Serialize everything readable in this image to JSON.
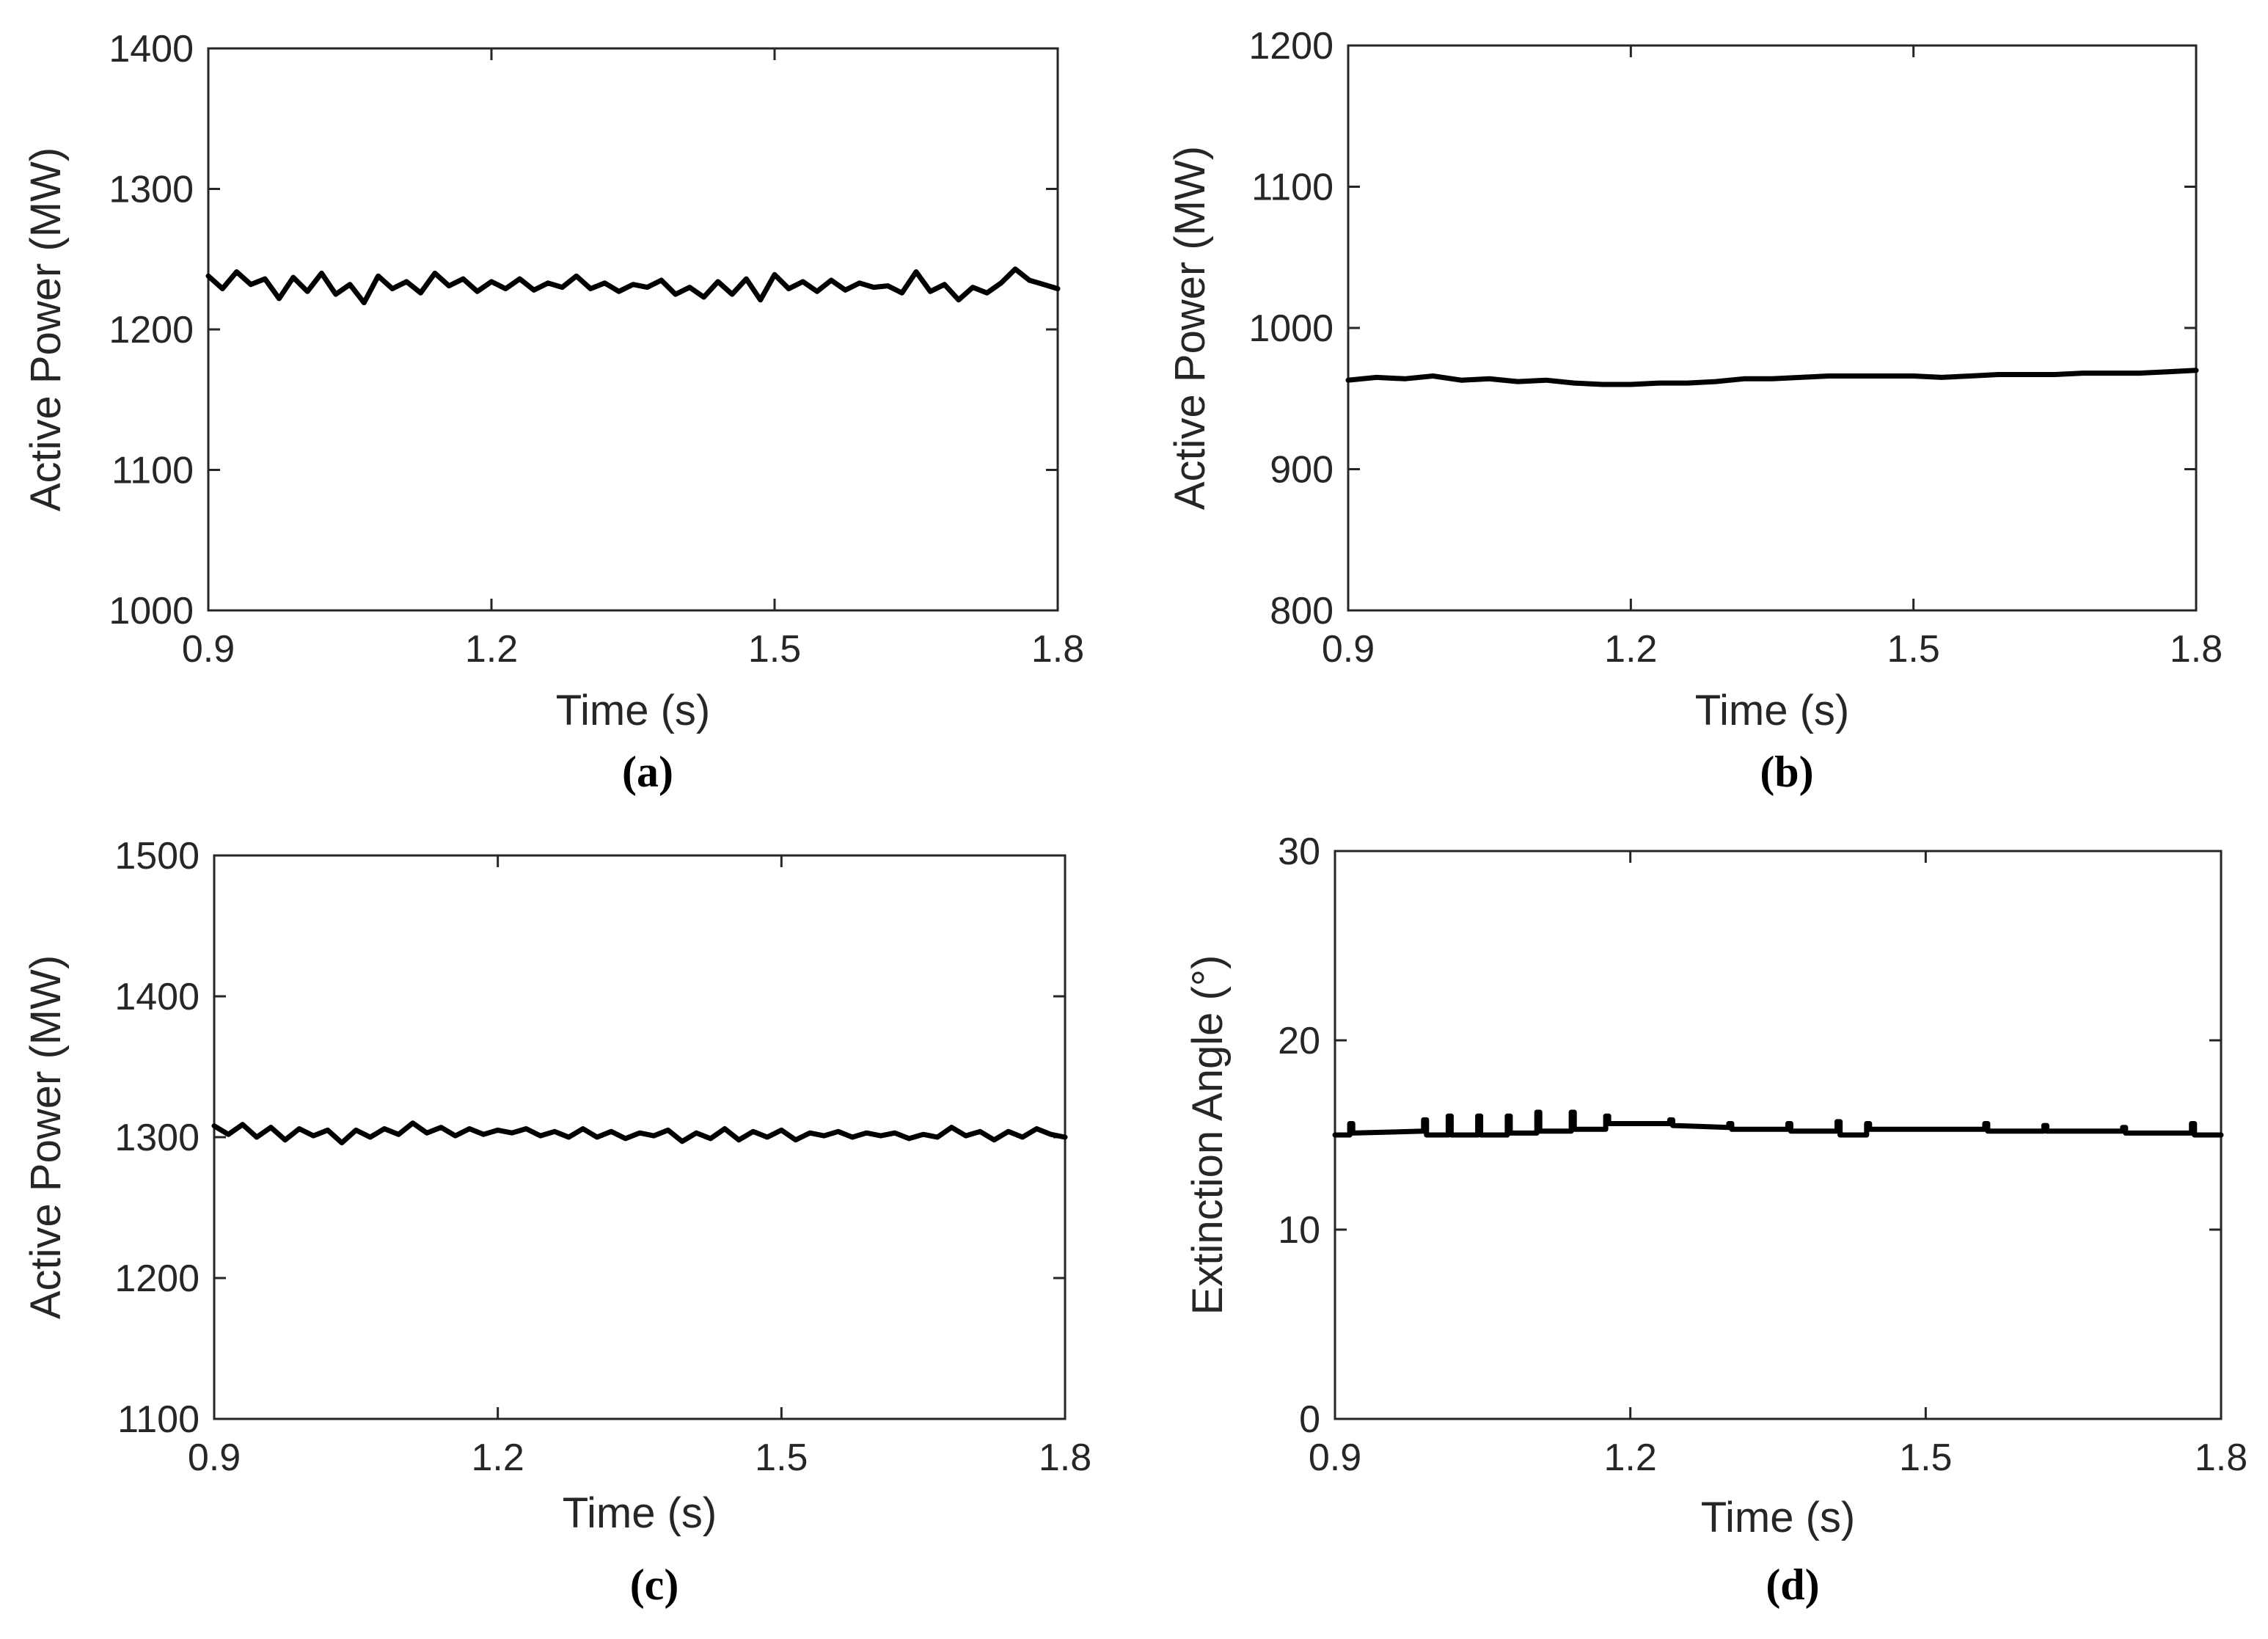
{
  "chart_data": [
    {
      "id": "a",
      "type": "line",
      "panel_label": "(a)",
      "xlabel": "Time (s)",
      "ylabel": "Active Power (MW)",
      "xlim": [
        0.9,
        1.8
      ],
      "ylim": [
        1000,
        1400
      ],
      "xticks": [
        0.9,
        1.2,
        1.5,
        1.8
      ],
      "xtick_labels": [
        "0.9",
        "1.2",
        "1.5",
        "1.8"
      ],
      "yticks": [
        1000,
        1100,
        1200,
        1300,
        1400
      ],
      "ytick_labels": [
        "1000",
        "1100",
        "1200",
        "1300",
        "1400"
      ],
      "grid": false,
      "series": [
        {
          "name": "Active Power",
          "color": "#000000",
          "x": [
            0.9,
            0.915,
            0.93,
            0.945,
            0.96,
            0.975,
            0.99,
            1.005,
            1.02,
            1.035,
            1.05,
            1.065,
            1.08,
            1.095,
            1.11,
            1.125,
            1.14,
            1.155,
            1.17,
            1.185,
            1.2,
            1.215,
            1.23,
            1.245,
            1.26,
            1.275,
            1.29,
            1.305,
            1.32,
            1.335,
            1.35,
            1.365,
            1.38,
            1.395,
            1.41,
            1.425,
            1.44,
            1.455,
            1.47,
            1.485,
            1.5,
            1.515,
            1.53,
            1.545,
            1.56,
            1.575,
            1.59,
            1.605,
            1.62,
            1.635,
            1.65,
            1.665,
            1.68,
            1.695,
            1.71,
            1.725,
            1.74,
            1.755,
            1.77,
            1.785,
            1.8
          ],
          "values": [
            1238,
            1229,
            1241,
            1232,
            1236,
            1222,
            1237,
            1227,
            1240,
            1225,
            1232,
            1219,
            1238,
            1229,
            1234,
            1226,
            1240,
            1231,
            1236,
            1227,
            1234,
            1229,
            1236,
            1228,
            1233,
            1230,
            1238,
            1229,
            1233,
            1227,
            1232,
            1230,
            1235,
            1225,
            1230,
            1223,
            1234,
            1225,
            1236,
            1221,
            1239,
            1229,
            1234,
            1227,
            1235,
            1228,
            1233,
            1230,
            1231,
            1226,
            1241,
            1227,
            1232,
            1221,
            1230,
            1226,
            1233,
            1243,
            1235,
            1232,
            1229
          ]
        }
      ]
    },
    {
      "id": "b",
      "type": "line",
      "panel_label": "(b)",
      "xlabel": "Time (s)",
      "ylabel": "Active Power (MW)",
      "xlim": [
        0.9,
        1.8
      ],
      "ylim": [
        800,
        1200
      ],
      "xticks": [
        0.9,
        1.2,
        1.5,
        1.8
      ],
      "xtick_labels": [
        "0.9",
        "1.2",
        "1.5",
        "1.8"
      ],
      "yticks": [
        800,
        900,
        1000,
        1100,
        1200
      ],
      "ytick_labels": [
        "800",
        "900",
        "1000",
        "1100",
        "1200"
      ],
      "grid": false,
      "series": [
        {
          "name": "Active Power",
          "color": "#000000",
          "x": [
            0.9,
            0.93,
            0.96,
            0.99,
            1.02,
            1.05,
            1.08,
            1.11,
            1.14,
            1.17,
            1.2,
            1.23,
            1.26,
            1.29,
            1.32,
            1.35,
            1.38,
            1.41,
            1.44,
            1.47,
            1.5,
            1.53,
            1.56,
            1.59,
            1.62,
            1.65,
            1.68,
            1.71,
            1.74,
            1.77,
            1.8
          ],
          "values": [
            963,
            965,
            964,
            966,
            963,
            964,
            962,
            963,
            961,
            960,
            960,
            961,
            961,
            962,
            964,
            964,
            965,
            966,
            966,
            966,
            966,
            965,
            966,
            967,
            967,
            967,
            968,
            968,
            968,
            969,
            970
          ]
        }
      ]
    },
    {
      "id": "c",
      "type": "line",
      "panel_label": "(c)",
      "xlabel": "Time (s)",
      "ylabel": "Active Power (MW)",
      "xlim": [
        0.9,
        1.8
      ],
      "ylim": [
        1100,
        1500
      ],
      "xticks": [
        0.9,
        1.2,
        1.5,
        1.8
      ],
      "xtick_labels": [
        "0.9",
        "1.2",
        "1.5",
        "1.8"
      ],
      "yticks": [
        1100,
        1200,
        1300,
        1400,
        1500
      ],
      "ytick_labels": [
        "1100",
        "1200",
        "1300",
        "1400",
        "1500"
      ],
      "grid": false,
      "series": [
        {
          "name": "Active Power",
          "color": "#000000",
          "x": [
            0.9,
            0.915,
            0.93,
            0.945,
            0.96,
            0.975,
            0.99,
            1.005,
            1.02,
            1.035,
            1.05,
            1.065,
            1.08,
            1.095,
            1.11,
            1.125,
            1.14,
            1.155,
            1.17,
            1.185,
            1.2,
            1.215,
            1.23,
            1.245,
            1.26,
            1.275,
            1.29,
            1.305,
            1.32,
            1.335,
            1.35,
            1.365,
            1.38,
            1.395,
            1.41,
            1.425,
            1.44,
            1.455,
            1.47,
            1.485,
            1.5,
            1.515,
            1.53,
            1.545,
            1.56,
            1.575,
            1.59,
            1.605,
            1.62,
            1.635,
            1.65,
            1.665,
            1.68,
            1.695,
            1.71,
            1.725,
            1.74,
            1.755,
            1.77,
            1.785,
            1.8
          ],
          "values": [
            1308,
            1302,
            1309,
            1300,
            1307,
            1298,
            1306,
            1301,
            1305,
            1296,
            1305,
            1300,
            1306,
            1302,
            1310,
            1303,
            1307,
            1301,
            1306,
            1302,
            1305,
            1303,
            1306,
            1301,
            1304,
            1300,
            1306,
            1300,
            1304,
            1299,
            1303,
            1301,
            1305,
            1297,
            1303,
            1299,
            1306,
            1298,
            1304,
            1300,
            1305,
            1298,
            1303,
            1301,
            1304,
            1300,
            1303,
            1301,
            1303,
            1299,
            1302,
            1300,
            1307,
            1301,
            1304,
            1298,
            1304,
            1300,
            1306,
            1302,
            1300
          ]
        }
      ]
    },
    {
      "id": "d",
      "type": "line",
      "panel_label": "(d)",
      "xlabel": "Time (s)",
      "ylabel": "Extinction Angle (°)",
      "xlim": [
        0.9,
        1.8
      ],
      "ylim": [
        0,
        30
      ],
      "xticks": [
        0.9,
        1.2,
        1.5,
        1.8
      ],
      "xtick_labels": [
        "0.9",
        "1.2",
        "1.5",
        "1.8"
      ],
      "yticks": [
        0,
        10,
        20,
        30
      ],
      "ytick_labels": [
        "0",
        "10",
        "20",
        "30"
      ],
      "grid": false,
      "series": [
        {
          "name": "Extinction Angle",
          "color": "#000000",
          "x": [
            0.9,
            0.915,
            0.915,
            0.918,
            0.918,
            0.99,
            0.99,
            0.993,
            0.993,
            1.015,
            1.015,
            1.018,
            1.018,
            1.045,
            1.045,
            1.048,
            1.048,
            1.075,
            1.075,
            1.078,
            1.078,
            1.105,
            1.105,
            1.108,
            1.108,
            1.14,
            1.14,
            1.143,
            1.143,
            1.175,
            1.175,
            1.178,
            1.178,
            1.24,
            1.24,
            1.243,
            1.243,
            1.3,
            1.3,
            1.303,
            1.303,
            1.36,
            1.36,
            1.363,
            1.363,
            1.41,
            1.41,
            1.413,
            1.413,
            1.44,
            1.44,
            1.443,
            1.443,
            1.56,
            1.56,
            1.563,
            1.563,
            1.62,
            1.62,
            1.623,
            1.623,
            1.7,
            1.7,
            1.703,
            1.703,
            1.77,
            1.77,
            1.773,
            1.773,
            1.8
          ],
          "values": [
            15.0,
            15.0,
            15.6,
            15.6,
            15.1,
            15.2,
            15.8,
            15.8,
            15.0,
            15.0,
            16.0,
            16.0,
            15.0,
            15.0,
            16.0,
            16.0,
            15.0,
            15.0,
            16.0,
            16.0,
            15.1,
            15.1,
            16.2,
            16.2,
            15.2,
            15.2,
            16.2,
            16.2,
            15.3,
            15.3,
            16.0,
            16.0,
            15.6,
            15.6,
            15.8,
            15.8,
            15.5,
            15.4,
            15.6,
            15.6,
            15.3,
            15.3,
            15.6,
            15.6,
            15.2,
            15.2,
            15.7,
            15.7,
            15.0,
            15.0,
            15.6,
            15.6,
            15.3,
            15.3,
            15.6,
            15.6,
            15.2,
            15.2,
            15.5,
            15.5,
            15.2,
            15.2,
            15.4,
            15.4,
            15.1,
            15.1,
            15.6,
            15.6,
            15.0,
            15.0
          ]
        }
      ]
    }
  ]
}
